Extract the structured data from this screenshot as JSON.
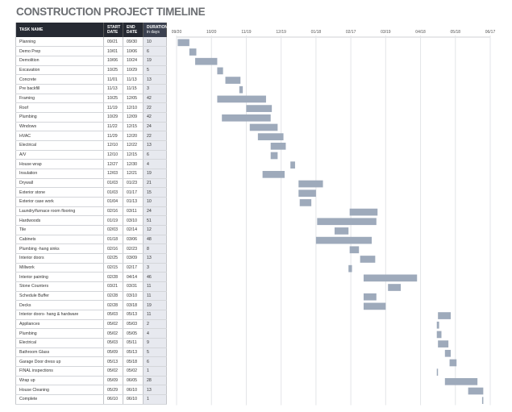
{
  "chart_data": {
    "type": "gantt",
    "title": "CONSTRUCTION PROJECT TIMELINE",
    "columns": {
      "task": "TASK NAME",
      "start": "START DATE",
      "end": "END DATE",
      "duration": "DURATION",
      "duration_sub": "in days"
    },
    "axis_ticks": [
      "09/20",
      "10/20",
      "11/19",
      "12/19",
      "01/18",
      "02/17",
      "03/19",
      "04/18",
      "05/18",
      "06/17"
    ],
    "bar_color": "#9eaabb",
    "tasks": [
      {
        "name": "Planning",
        "start": "09/21",
        "end": "09/30",
        "duration": 10
      },
      {
        "name": "Demo Prep",
        "start": "10/01",
        "end": "10/06",
        "duration": 6
      },
      {
        "name": "Demolition",
        "start": "10/06",
        "end": "10/24",
        "duration": 19
      },
      {
        "name": "Excavation",
        "start": "10/25",
        "end": "10/29",
        "duration": 5
      },
      {
        "name": "Concrete",
        "start": "11/01",
        "end": "11/13",
        "duration": 13
      },
      {
        "name": "Pre backfill",
        "start": "11/13",
        "end": "11/15",
        "duration": 3
      },
      {
        "name": "Framing",
        "start": "10/25",
        "end": "12/05",
        "duration": 42
      },
      {
        "name": "Roof",
        "start": "11/19",
        "end": "12/10",
        "duration": 22
      },
      {
        "name": "Plumbing",
        "start": "10/29",
        "end": "12/09",
        "duration": 42
      },
      {
        "name": "Windows",
        "start": "11/22",
        "end": "12/15",
        "duration": 24
      },
      {
        "name": "HVAC",
        "start": "11/29",
        "end": "12/20",
        "duration": 22
      },
      {
        "name": "Electrical",
        "start": "12/10",
        "end": "12/22",
        "duration": 13
      },
      {
        "name": "A/V",
        "start": "12/10",
        "end": "12/15",
        "duration": 6
      },
      {
        "name": "House wrap",
        "start": "12/27",
        "end": "12/30",
        "duration": 4
      },
      {
        "name": "Insulation",
        "start": "12/03",
        "end": "12/21",
        "duration": 19
      },
      {
        "name": "Drywall",
        "start": "01/03",
        "end": "01/23",
        "duration": 21
      },
      {
        "name": "Exterior stone",
        "start": "01/03",
        "end": "01/17",
        "duration": 15
      },
      {
        "name": "Exterior case work",
        "start": "01/04",
        "end": "01/13",
        "duration": 10
      },
      {
        "name": "Laundry/furnace room flooring",
        "start": "02/16",
        "end": "03/11",
        "duration": 24
      },
      {
        "name": "Hardwoods",
        "start": "01/19",
        "end": "03/10",
        "duration": 51
      },
      {
        "name": "Tile",
        "start": "02/03",
        "end": "02/14",
        "duration": 12
      },
      {
        "name": "Cabinets",
        "start": "01/18",
        "end": "03/06",
        "duration": 48
      },
      {
        "name": "Plumbing -hang sinks",
        "start": "02/16",
        "end": "02/23",
        "duration": 8
      },
      {
        "name": "Interior doors",
        "start": "02/25",
        "end": "03/09",
        "duration": 13
      },
      {
        "name": "Millwork",
        "start": "02/15",
        "end": "02/17",
        "duration": 3
      },
      {
        "name": "Interior painting",
        "start": "02/28",
        "end": "04/14",
        "duration": 46
      },
      {
        "name": "Stone Counters",
        "start": "03/21",
        "end": "03/31",
        "duration": 11
      },
      {
        "name": "Schedule Buffer",
        "start": "02/28",
        "end": "03/10",
        "duration": 11
      },
      {
        "name": "Decks",
        "start": "02/28",
        "end": "03/18",
        "duration": 19
      },
      {
        "name": "Interior doors- hang & hardware",
        "start": "05/03",
        "end": "05/13",
        "duration": 11
      },
      {
        "name": "Appliances",
        "start": "05/02",
        "end": "05/03",
        "duration": 2
      },
      {
        "name": "Plumbing",
        "start": "05/02",
        "end": "05/05",
        "duration": 4
      },
      {
        "name": "Electrical",
        "start": "05/03",
        "end": "05/11",
        "duration": 9
      },
      {
        "name": "Bathroom Glass",
        "start": "05/09",
        "end": "05/13",
        "duration": 5
      },
      {
        "name": "Garage Door dress up",
        "start": "05/13",
        "end": "05/18",
        "duration": 6
      },
      {
        "name": "FINAL inspections",
        "start": "05/02",
        "end": "05/02",
        "duration": 1
      },
      {
        "name": "Wrap up",
        "start": "05/09",
        "end": "06/05",
        "duration": 28
      },
      {
        "name": "House Cleaning",
        "start": "05/29",
        "end": "06/10",
        "duration": 13
      },
      {
        "name": "Complete",
        "start": "06/10",
        "end": "06/10",
        "duration": 1
      }
    ]
  }
}
